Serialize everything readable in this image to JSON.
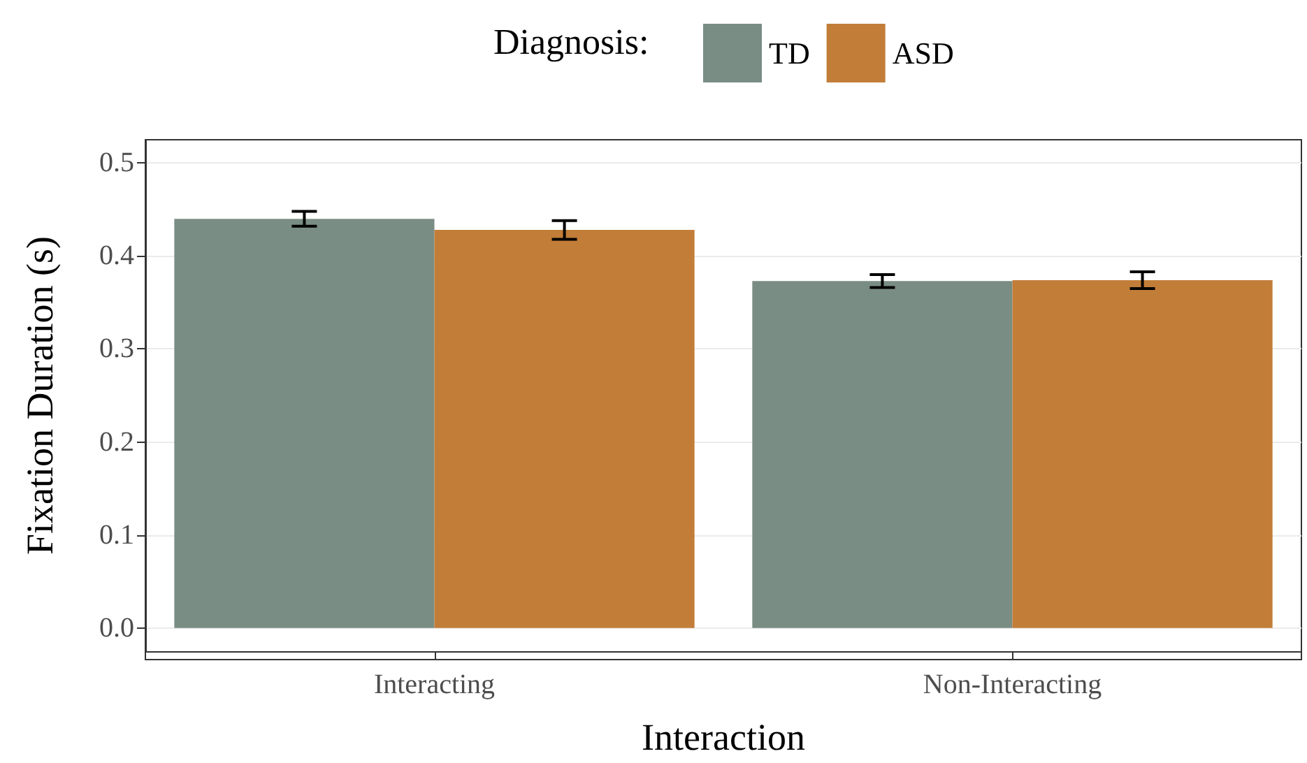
{
  "chart_data": {
    "type": "bar",
    "xlabel": "Interaction",
    "ylabel": "Fixation Duration (s)",
    "legend_title": "Diagnosis:",
    "legend": "top",
    "grid": "y",
    "categories": [
      "Interacting",
      "Non-Interacting"
    ],
    "series": [
      {
        "name": "TD",
        "color": "#7a8d84",
        "values": [
          0.44,
          0.373
        ],
        "errors": [
          0.008,
          0.007
        ]
      },
      {
        "name": "ASD",
        "color": "#c27d38",
        "values": [
          0.428,
          0.374
        ],
        "errors": [
          0.01,
          0.009
        ]
      }
    ],
    "ylim": [
      -0.025,
      0.525
    ],
    "yticks": [
      {
        "value": 0,
        "label": "0.0"
      },
      0.1,
      0.2,
      0.3,
      0.4,
      0.5
    ]
  }
}
